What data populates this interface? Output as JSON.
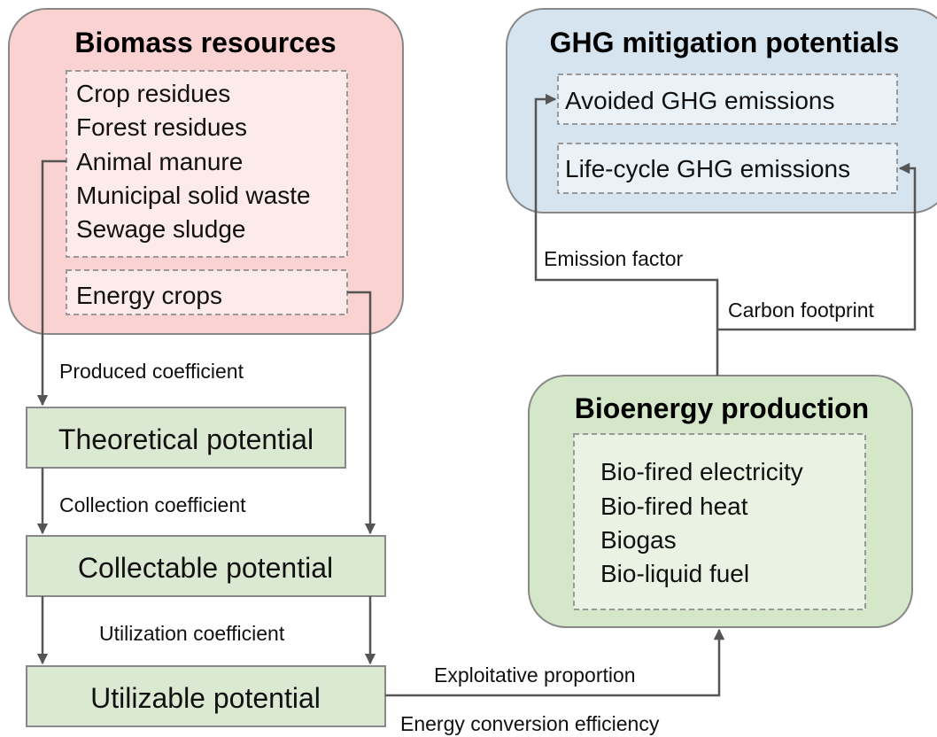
{
  "biomass": {
    "title": "Biomass resources",
    "items": [
      "Crop residues",
      "Forest residues",
      "Animal manure",
      "Municipal solid waste",
      "Sewage sludge"
    ],
    "energy_crops": "Energy crops"
  },
  "ghg": {
    "title": "GHG mitigation potentials",
    "items": [
      "Avoided GHG emissions",
      "Life-cycle GHG emissions"
    ]
  },
  "bioenergy": {
    "title": "Bioenergy production",
    "items": [
      "Bio-fired electricity",
      "Bio-fired heat",
      "Biogas",
      "Bio-liquid fuel"
    ]
  },
  "potentials": {
    "theoretical": "Theoretical potential",
    "collectable": "Collectable potential",
    "utilizable": "Utilizable potential"
  },
  "edges": {
    "produced": "Produced coefficient",
    "collection": "Collection coefficient",
    "utilization": "Utilization coefficient",
    "exploitative": "Exploitative proportion",
    "conversion": "Energy conversion efficiency",
    "emission": "Emission factor",
    "carbon": "Carbon footprint"
  }
}
